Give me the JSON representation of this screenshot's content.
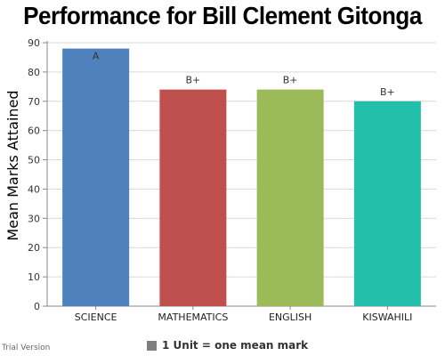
{
  "chart_data": {
    "type": "bar",
    "title": "Performance for Bill Clement Gitonga",
    "xlabel": "",
    "ylabel": "Mean Marks Attained",
    "categories": [
      "SCIENCE",
      "MATHEMATICS",
      "ENGLISH",
      "KISWAHILI"
    ],
    "values": [
      88,
      74,
      74,
      70
    ],
    "grades": [
      "A",
      "B+",
      "B+",
      "B+"
    ],
    "colors": [
      "#4f81bd",
      "#c0504d",
      "#9bbb59",
      "#23bfaa"
    ],
    "ylim": [
      0,
      90
    ],
    "yticks": [
      0,
      10,
      20,
      30,
      40,
      50,
      60,
      70,
      80,
      90
    ],
    "grid": true,
    "legend": "bottom-center"
  },
  "legend": {
    "label": "1 Unit = one mean mark",
    "color": "#7f7f7f"
  },
  "footer": {
    "note": "Trial Version"
  }
}
